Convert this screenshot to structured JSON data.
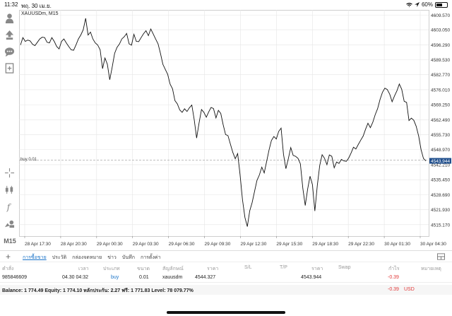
{
  "status_bar": {
    "time": "11:32",
    "date": "พฤ. 30 เม.ย.",
    "battery_pct": "60%",
    "battery_level": 0.6,
    "icons": [
      "wifi-icon",
      "location-icon",
      "battery-icon"
    ]
  },
  "left_toolbar": {
    "icons": [
      "person-icon",
      "upload-icon",
      "chat-icon",
      "add-document-icon",
      "crosshair-icon",
      "candlestick-icon",
      "function-icon",
      "objects-icon"
    ],
    "timeframe": "M15"
  },
  "chart": {
    "title": "XAUUSDm, M15",
    "trade_line_label": "buy 0.01",
    "current_price_tag": "4543.944",
    "colors": {
      "line": "#111111",
      "grid": "#e5e5e5",
      "trade_line": "#999999",
      "price_tag_bg": "#1f4e8c",
      "price_tag_text": "#ffffff"
    }
  },
  "chart_data": {
    "type": "line",
    "title": "XAUUSDm, M15",
    "xlabel": "",
    "ylabel": "",
    "ylim": [
      4510.0,
      4612.0
    ],
    "grid": true,
    "x_ticks": [
      "28 Apr 17:30",
      "28 Apr 20:30",
      "29 Apr 00:30",
      "29 Apr 03:30",
      "29 Apr 06:30",
      "29 Apr 09:30",
      "29 Apr 12:30",
      "29 Apr 15:30",
      "29 Apr 18:30",
      "29 Apr 22:30",
      "30 Apr 01:30",
      "30 Apr 04:30"
    ],
    "y_ticks": [
      4609.57,
      4603.05,
      4596.29,
      4589.53,
      4582.77,
      4576.01,
      4569.25,
      4562.49,
      4555.73,
      4548.97,
      4542.21,
      4535.45,
      4528.69,
      4521.93,
      4515.17
    ],
    "trade_level": 4544.327,
    "current_price": 4543.944,
    "series": [
      {
        "values": [
          4596.2,
          4599.5,
          4597.8,
          4598.4,
          4598.0,
          4596.5,
          4595.9,
          4597.4,
          4598.9,
          4599.7,
          4599.5,
          4597.4,
          4597.1,
          4599.5,
          4597.8,
          4595.5,
          4594.4,
          4597.8,
          4598.9,
          4597.1,
          4595.5,
          4594.0,
          4593.8,
          4596.2,
          4598.9,
          4600.7,
          4603.0,
          4608.2,
          4600.7,
          4602.0,
          4598.9,
          4597.1,
          4596.2,
          4594.0,
          4585.5,
          4590.3,
          4587.5,
          4580.5,
          4586.1,
          4592.4,
          4595.1,
          4596.6,
          4598.9,
          4599.9,
          4601.4,
          4596.7,
          4596.1,
          4601.0,
          4597.8,
          4597.7,
          4599.5,
          4601.3,
          4602.6,
          4600.4,
          4603.4,
          4601.2,
          4598.9,
          4596.7,
          4592.4,
          4587.5,
          4585.2,
          4583.0,
          4578.6,
          4576.4,
          4571.1,
          4569.6,
          4566.9,
          4565.8,
          4567.4,
          4566.2,
          4567.9,
          4569.1,
          4562.5,
          4554.2,
          4560.9,
          4567.1,
          4565.8,
          4563.6,
          4566.0,
          4568.0,
          4567.5,
          4563.3,
          4566.7,
          4565.3,
          4560.2,
          4555.8,
          4555.3,
          4551.4,
          4547.7,
          4544.9,
          4547.2,
          4537.7,
          4526.5,
          4518.4,
          4514.3,
          4521.4,
          4525.1,
          4530.1,
          4535.1,
          4537.6,
          4541.1,
          4538.5,
          4543.6,
          4548.8,
          4553.1,
          4554.9,
          4553.8,
          4557.2,
          4558.7,
          4546.9,
          4540.4,
          4545.0,
          4549.9,
          4546.4,
          4546.0,
          4545.1,
          4542.6,
          4531.5,
          4523.8,
          4531.2,
          4537.0,
          4533.2,
          4521.3,
          4532.9,
          4541.8,
          4546.7,
          4545.1,
          4542.2,
          4546.6,
          4546.0,
          4540.8,
          4543.4,
          4542.8,
          4544.6,
          4543.9,
          4543.7,
          4545.2,
          4547.5,
          4550.1,
          4549.3,
          4551.3,
          4553.3,
          4555.1,
          4558.2,
          4560.9,
          4558.9,
          4561.3,
          4564.8,
          4567.5,
          4571.6,
          4574.8,
          4576.7,
          4576.1,
          4574.0,
          4570.6,
          4573.2,
          4575.5,
          4578.6,
          4576.2,
          4570.8,
          4570.3,
          4562.1,
          4563.2,
          4562.2,
          4559.5,
          4555.1,
          4549.0,
          4545.0,
          4543.9
        ]
      }
    ]
  },
  "tabs": {
    "items": [
      "การซื้อขาย",
      "ประวัติ",
      "กล่องจดหมาย",
      "ข่าว",
      "บันทึก",
      "การตั้งค่า"
    ],
    "active_index": 0
  },
  "trade_table": {
    "headers": [
      "คำสั่ง",
      "เวลา",
      "ประเภท",
      "ขนาด",
      "สัญลักษณ์",
      "ราคา",
      "S/L",
      "T/P",
      "ราคา",
      "Swap",
      "กำไร",
      "หมายเหตุ"
    ],
    "row": {
      "order": "985846609",
      "time": "04.30 04:32",
      "type": "buy",
      "size": "0.01",
      "symbol": "xauusdm",
      "open_price": "4544.327",
      "sl": "",
      "tp": "",
      "price": "4543.944",
      "swap": "",
      "profit": "-0.39",
      "note": ""
    }
  },
  "balance": {
    "text": "Balance: 1 774.49 Equity: 1 774.10 หลักประกัน: 2.27 ฟรี: 1 771.83 Level: 78 079.77%",
    "profit": "-0.39",
    "currency": "USD"
  }
}
